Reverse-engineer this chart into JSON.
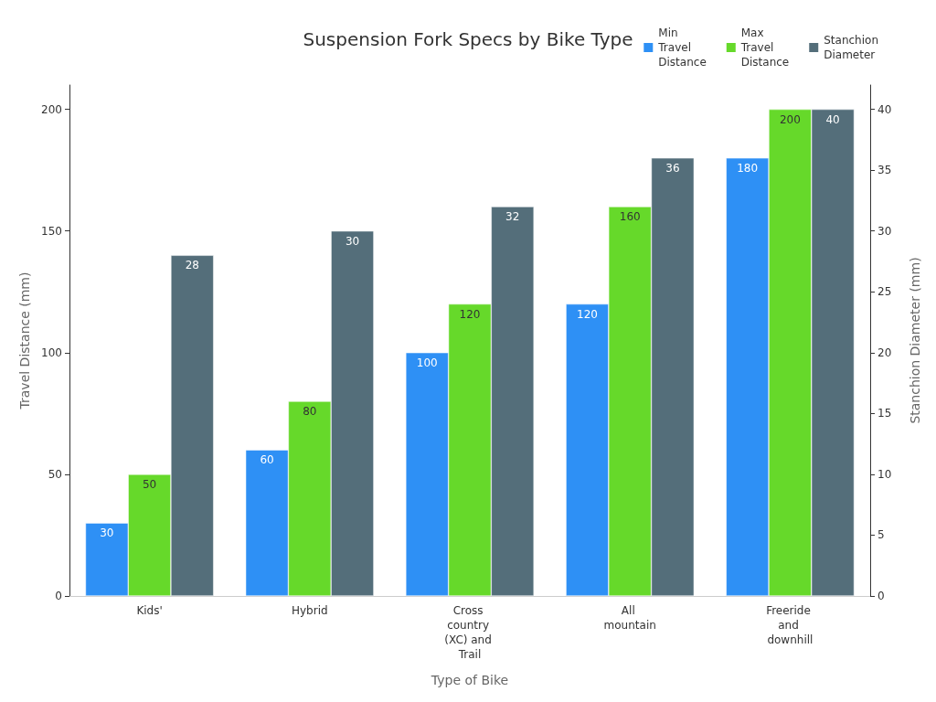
{
  "chart_data": {
    "type": "bar",
    "title": "Suspension Fork Specs by Bike Type",
    "xlabel": "Type of Bike",
    "ylabel": "Travel Distance (mm)",
    "y2label": "Stanchion Diameter (mm)",
    "categories": [
      "Kids'",
      "Hybrid",
      "Cross country (XC) and Trail",
      "All mountain",
      "Freeride and downhill"
    ],
    "series": [
      {
        "name": "Min Travel Distance",
        "color": "#2e90f5",
        "values": [
          30,
          60,
          100,
          120,
          180
        ]
      },
      {
        "name": "Max Travel Distance",
        "color": "#66d92a",
        "values": [
          50,
          80,
          120,
          160,
          200
        ]
      },
      {
        "name": "Stanchion Diameter",
        "color": "#546e7a",
        "values": [
          28,
          30,
          32,
          36,
          40
        ],
        "axis": "y2"
      }
    ],
    "ylim": [
      0,
      210
    ],
    "yticks": [
      0,
      50,
      100,
      150,
      200
    ],
    "y2lim": [
      0,
      42
    ],
    "y2ticks": [
      0,
      5,
      10,
      15,
      20,
      25,
      30,
      35,
      40
    ],
    "data_labels": true,
    "grid": false,
    "legend": "top right"
  }
}
